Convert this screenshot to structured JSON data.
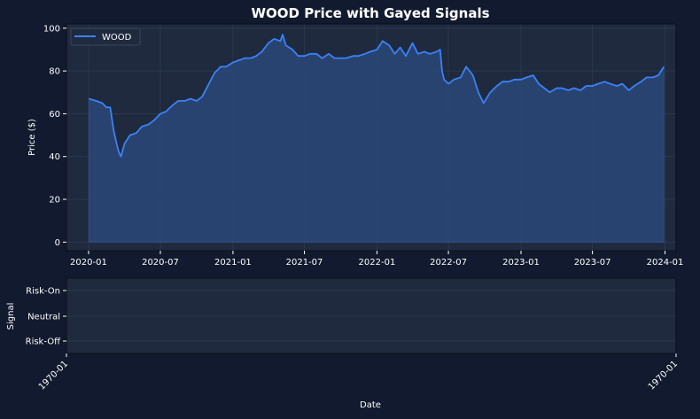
{
  "figure": {
    "title": "WOOD Price with Gayed Signals",
    "background": "#111a2e",
    "axes_background": "#1f2a3e",
    "grid_color": "#2e3a50",
    "text_color": "#ffffff",
    "line_color": "#3b82f6",
    "fill_color": "#2a4574"
  },
  "chart_data": [
    {
      "type": "area",
      "title": "WOOD Price with Gayed Signals",
      "xlabel": "",
      "ylabel": "Price ($)",
      "ylim": [
        -4,
        102
      ],
      "yticks": [
        0,
        20,
        40,
        60,
        80,
        100
      ],
      "xlim": [
        "2019-11-06",
        "2024-01-29"
      ],
      "xticks": [
        "2020-01",
        "2020-07",
        "2021-01",
        "2021-07",
        "2022-01",
        "2022-07",
        "2023-01",
        "2023-07",
        "2024-01"
      ],
      "grid": true,
      "legend": {
        "position": "top-left",
        "entries": [
          "WOOD"
        ]
      },
      "series": [
        {
          "name": "WOOD",
          "fill_to_zero": true,
          "x": [
            "2020-01-02",
            "2020-01-20",
            "2020-02-05",
            "2020-02-15",
            "2020-02-25",
            "2020-03-05",
            "2020-03-12",
            "2020-03-18",
            "2020-03-23",
            "2020-04-01",
            "2020-04-15",
            "2020-05-01",
            "2020-05-15",
            "2020-06-01",
            "2020-06-15",
            "2020-07-01",
            "2020-07-15",
            "2020-08-01",
            "2020-08-15",
            "2020-09-01",
            "2020-09-15",
            "2020-10-01",
            "2020-10-15",
            "2020-11-01",
            "2020-11-15",
            "2020-12-01",
            "2020-12-15",
            "2021-01-01",
            "2021-01-15",
            "2021-02-01",
            "2021-02-15",
            "2021-03-01",
            "2021-03-15",
            "2021-04-01",
            "2021-04-15",
            "2021-05-01",
            "2021-05-07",
            "2021-05-15",
            "2021-06-01",
            "2021-06-15",
            "2021-07-01",
            "2021-07-15",
            "2021-08-01",
            "2021-08-15",
            "2021-09-01",
            "2021-09-15",
            "2021-10-01",
            "2021-10-15",
            "2021-11-01",
            "2021-11-15",
            "2021-12-01",
            "2021-12-15",
            "2022-01-01",
            "2022-01-15",
            "2022-02-01",
            "2022-02-15",
            "2022-03-01",
            "2022-03-15",
            "2022-04-01",
            "2022-04-15",
            "2022-05-01",
            "2022-05-15",
            "2022-06-01",
            "2022-06-10",
            "2022-06-15",
            "2022-06-20",
            "2022-07-01",
            "2022-07-15",
            "2022-08-01",
            "2022-08-15",
            "2022-09-01",
            "2022-09-15",
            "2022-09-28",
            "2022-10-15",
            "2022-11-01",
            "2022-11-15",
            "2022-12-01",
            "2022-12-15",
            "2023-01-01",
            "2023-01-15",
            "2023-02-01",
            "2023-02-15",
            "2023-03-01",
            "2023-03-15",
            "2023-04-01",
            "2023-04-15",
            "2023-05-01",
            "2023-05-15",
            "2023-06-01",
            "2023-06-15",
            "2023-07-01",
            "2023-07-15",
            "2023-08-01",
            "2023-08-15",
            "2023-09-01",
            "2023-09-15",
            "2023-10-01",
            "2023-10-15",
            "2023-11-01",
            "2023-11-15",
            "2023-12-01",
            "2023-12-15",
            "2023-12-29"
          ],
          "y": [
            67,
            66,
            65,
            63,
            63,
            52,
            46,
            42,
            40,
            46,
            50,
            51,
            54,
            55,
            57,
            60,
            61,
            64,
            66,
            66,
            67,
            66,
            68,
            74,
            79,
            82,
            82,
            84,
            85,
            86,
            86,
            87,
            89,
            93,
            95,
            94,
            97,
            92,
            90,
            87,
            87,
            88,
            88,
            86,
            88,
            86,
            86,
            86,
            87,
            87,
            88,
            89,
            90,
            94,
            92,
            88,
            91,
            87,
            93,
            88,
            89,
            88,
            89,
            90,
            80,
            76,
            74,
            76,
            77,
            82,
            78,
            70,
            65,
            70,
            73,
            75,
            75,
            76,
            76,
            77,
            78,
            74,
            72,
            70,
            72,
            72,
            71,
            72,
            71,
            73,
            73,
            74,
            75,
            74,
            73,
            74,
            71,
            73,
            75,
            77,
            77,
            78,
            82
          ]
        }
      ]
    },
    {
      "type": "line",
      "title": "",
      "xlabel": "Date",
      "ylabel": "Signal",
      "yticks": [
        "Risk-Off",
        "Neutral",
        "Risk-On"
      ],
      "xticks": [
        "1970-01",
        "1970-01"
      ],
      "grid": true,
      "series": []
    }
  ]
}
